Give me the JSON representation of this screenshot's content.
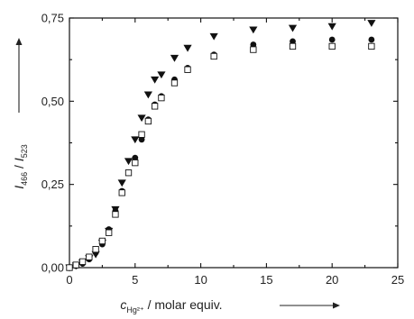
{
  "chart_data": {
    "type": "scatter",
    "xlim": [
      0,
      25
    ],
    "ylim": [
      0,
      0.75
    ],
    "x_ticks": [
      "0",
      "5",
      "10",
      "15",
      "20",
      "25"
    ],
    "y_ticks": [
      "0,00",
      "0,25",
      "0,50",
      "0,75"
    ],
    "xlabel": {
      "prefix": "c",
      "subscript": "Hg²⁺",
      "suffix": " / molar equiv."
    },
    "ylabel": {
      "i1": "I",
      "sub1": "466",
      "sep": " / ",
      "i2": "I",
      "sub2": "523"
    },
    "series": [
      {
        "marker": "triangle-down",
        "color": "#111111",
        "x": [
          0,
          0.5,
          1,
          1.5,
          2,
          2.5,
          3,
          3.5,
          4,
          4.5,
          5,
          5.5,
          6,
          6.5,
          7,
          8,
          9,
          11,
          14,
          17,
          20,
          23
        ],
        "y": [
          0.0,
          0.006,
          0.015,
          0.028,
          0.04,
          0.075,
          0.11,
          0.175,
          0.255,
          0.32,
          0.385,
          0.45,
          0.52,
          0.565,
          0.58,
          0.63,
          0.66,
          0.695,
          0.715,
          0.72,
          0.725,
          0.735
        ]
      },
      {
        "marker": "circle-filled",
        "color": "#111111",
        "x": [
          0,
          0.5,
          1,
          1.5,
          2,
          2.5,
          3,
          3.5,
          4,
          4.5,
          5,
          5.5,
          6,
          6.5,
          7,
          8,
          9,
          11,
          14,
          17,
          20,
          23
        ],
        "y": [
          0.0,
          0.005,
          0.012,
          0.025,
          0.045,
          0.07,
          0.115,
          0.17,
          0.23,
          0.285,
          0.33,
          0.385,
          0.445,
          0.49,
          0.515,
          0.565,
          0.6,
          0.64,
          0.67,
          0.68,
          0.685,
          0.685
        ]
      },
      {
        "marker": "square-open",
        "color": "#111111",
        "x": [
          0,
          0.5,
          1,
          1.5,
          2,
          2.5,
          3,
          3.5,
          4,
          4.5,
          5,
          5.5,
          6,
          6.5,
          7,
          8,
          9,
          11,
          14,
          17,
          20,
          23
        ],
        "y": [
          0.0,
          0.008,
          0.018,
          0.032,
          0.055,
          0.08,
          0.105,
          0.16,
          0.225,
          0.285,
          0.315,
          0.4,
          0.44,
          0.485,
          0.51,
          0.555,
          0.595,
          0.635,
          0.655,
          0.665,
          0.665,
          0.665
        ]
      }
    ]
  }
}
